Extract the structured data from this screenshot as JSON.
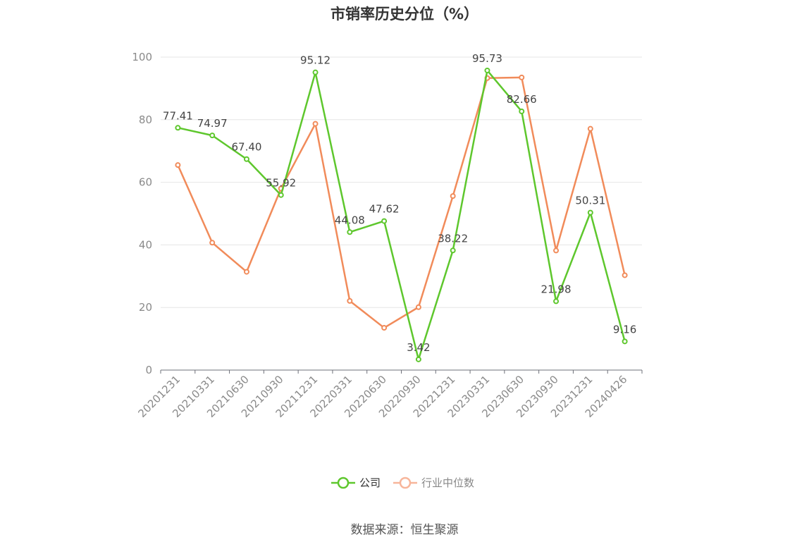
{
  "title": "市销率历史分位（%）",
  "source": "数据来源：恒生聚源",
  "colors": {
    "company": "#5ec72d",
    "industry": "#f18b5a",
    "grid": "#e6e6e6",
    "axis": "#6e7079"
  },
  "chart_data": {
    "type": "line",
    "title": "市销率历史分位（%）",
    "categories": [
      "20201231",
      "20210331",
      "20210630",
      "20210930",
      "20211231",
      "20220331",
      "20220630",
      "20220930",
      "20221231",
      "20230331",
      "20230630",
      "20230930",
      "20231231",
      "20240426"
    ],
    "series": [
      {
        "name": "公司",
        "values": [
          77.41,
          74.97,
          67.4,
          55.92,
          95.12,
          44.08,
          47.62,
          3.42,
          38.22,
          95.73,
          82.66,
          21.98,
          50.31,
          9.16
        ],
        "labels_shown": true
      },
      {
        "name": "行业中位数",
        "values": [
          65.5,
          40.7,
          31.4,
          58.0,
          78.7,
          22.1,
          13.5,
          20.1,
          55.6,
          93.3,
          93.5,
          38.2,
          77.1,
          30.3
        ],
        "labels_shown": false
      }
    ],
    "yticks": [
      "0",
      "20",
      "40",
      "60",
      "80",
      "100"
    ],
    "ylim": [
      0,
      100
    ],
    "grid": true,
    "legend_position": "bottom-center"
  }
}
